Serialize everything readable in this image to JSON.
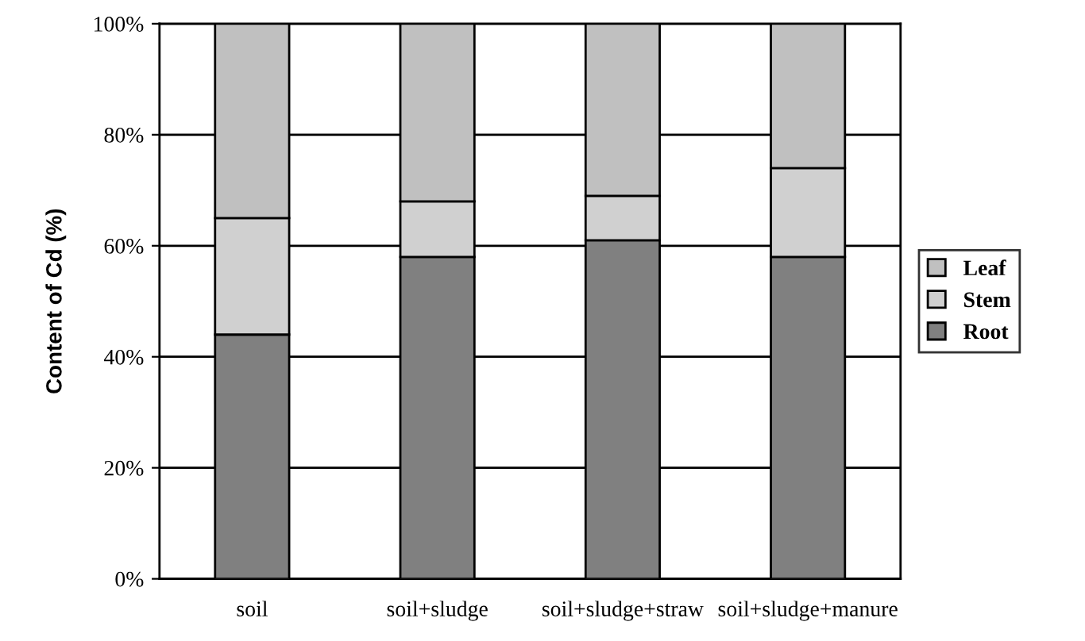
{
  "chart_data": {
    "type": "bar",
    "stacked": true,
    "ylabel": "Content of Cd (%)",
    "categories": [
      "soil",
      "soil+sludge",
      "soil+sludge+straw",
      "soil+sludge+manure"
    ],
    "series": [
      {
        "name": "Root",
        "color": "#808080",
        "values": [
          44,
          58,
          61,
          58
        ]
      },
      {
        "name": "Stem",
        "color": "#d0d0d0",
        "values": [
          21,
          10,
          8,
          16
        ]
      },
      {
        "name": "Leaf",
        "color": "#c0c0c0",
        "values": [
          35,
          32,
          31,
          26
        ]
      }
    ],
    "ylim": [
      0,
      100
    ],
    "yticks": [
      {
        "value": 0,
        "label": "0%"
      },
      {
        "value": 20,
        "label": "20%"
      },
      {
        "value": 40,
        "label": "40%"
      },
      {
        "value": 60,
        "label": "60%"
      },
      {
        "value": 80,
        "label": "80%"
      },
      {
        "value": 100,
        "label": "100%"
      }
    ],
    "grid": "y",
    "legend": "right"
  }
}
